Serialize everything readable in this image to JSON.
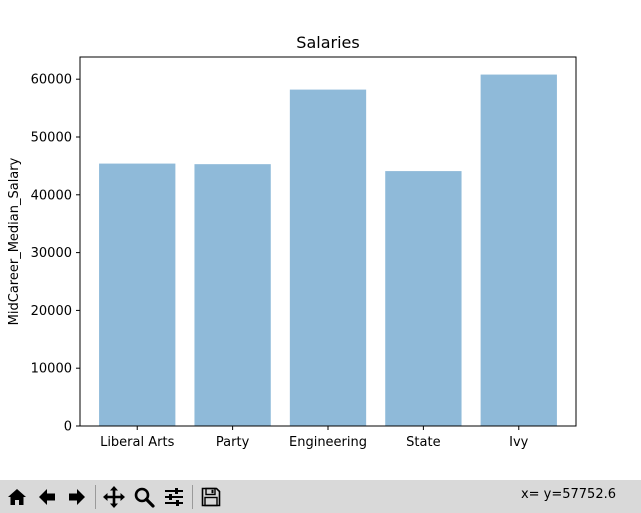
{
  "chart_data": {
    "type": "bar",
    "title": "Salaries",
    "xlabel": "",
    "ylabel": "MidCareer_Median_Salary",
    "categories": [
      "Liberal Arts",
      "Party",
      "Engineering",
      "State",
      "Ivy"
    ],
    "values": [
      45400,
      45300,
      58200,
      44100,
      60800
    ],
    "ylim": [
      0,
      63840
    ],
    "yticks": [
      0,
      10000,
      20000,
      30000,
      40000,
      50000,
      60000
    ],
    "ytick_labels": [
      "0",
      "10000",
      "20000",
      "30000",
      "40000",
      "50000",
      "60000"
    ],
    "bar_color": "#8fbad9",
    "grid": false,
    "legend": "none"
  },
  "toolbar": {
    "buttons": [
      {
        "name": "home-button",
        "icon": "home-icon"
      },
      {
        "name": "back-button",
        "icon": "arrow-left-icon"
      },
      {
        "name": "forward-button",
        "icon": "arrow-right-icon"
      },
      {
        "name": "pan-button",
        "icon": "move-icon"
      },
      {
        "name": "zoom-button",
        "icon": "magnifier-icon"
      },
      {
        "name": "configure-subplots-button",
        "icon": "sliders-icon"
      },
      {
        "name": "save-button",
        "icon": "floppy-disk-icon"
      }
    ],
    "coords_text": "x= y=57752.6"
  }
}
